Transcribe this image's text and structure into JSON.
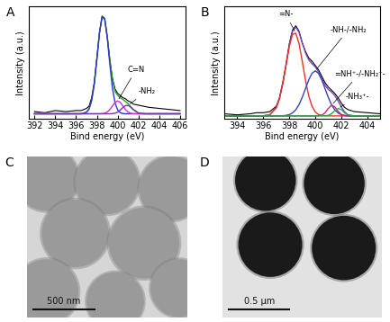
{
  "chart_data": [
    {
      "type": "line",
      "panel": "A",
      "xlabel": "Bind energy (eV)",
      "ylabel": "Intensity (a.u.)",
      "xlim": [
        391.5,
        406.5
      ],
      "xticks": [
        392,
        394,
        396,
        398,
        400,
        402,
        404,
        406
      ],
      "ylim": [
        0,
        1.05
      ],
      "tick_labels": "x",
      "x": [
        392,
        393,
        394,
        395,
        396,
        396.5,
        397,
        397.25,
        397.5,
        397.75,
        398,
        398.25,
        398.5,
        398.75,
        399,
        399.25,
        399.5,
        399.75,
        400,
        400.25,
        400.5,
        400.75,
        401,
        401.25,
        401.5,
        402,
        402.5,
        403,
        404,
        405,
        406
      ],
      "series": [
        {
          "color": "#000000",
          "values": [
            0.07,
            0.06,
            0.08,
            0.07,
            0.08,
            0.08,
            0.1,
            0.12,
            0.2,
            0.34,
            0.57,
            0.8,
            0.96,
            0.94,
            0.77,
            0.55,
            0.38,
            0.28,
            0.24,
            0.22,
            0.2,
            0.19,
            0.17,
            0.16,
            0.14,
            0.13,
            0.12,
            0.11,
            0.1,
            0.09,
            0.08
          ]
        },
        {
          "color": "#22aa33",
          "values": [
            0.05,
            0.05,
            0.05,
            0.05,
            0.05,
            0.05,
            0.064,
            0.095,
            0.174,
            0.326,
            0.556,
            0.804,
            0.953,
            0.938,
            0.774,
            0.549,
            0.364,
            0.257,
            0.222,
            0.2,
            0.183,
            0.165,
            0.144,
            0.117,
            0.09,
            0.057,
            0.05,
            0.05,
            0.05,
            0.05,
            0.05
          ]
        },
        {
          "color": "#3333cc",
          "values": [
            0.05,
            0.05,
            0.05,
            0.05,
            0.05,
            0.05,
            0.064,
            0.095,
            0.174,
            0.326,
            0.556,
            0.804,
            0.952,
            0.933,
            0.758,
            0.51,
            0.289,
            0.151,
            0.086,
            0.06,
            0.052,
            0.05,
            0.05,
            0.05,
            0.05,
            0.05,
            0.05,
            0.05,
            0.05,
            0.05,
            0.05
          ]
        },
        {
          "name": "C=N",
          "color": "#cc33cc",
          "values": [
            0.05,
            0.05,
            0.05,
            0.05,
            0.05,
            0.05,
            0.05,
            0.05,
            0.05,
            0.05,
            0.05,
            0.05,
            0.051,
            0.055,
            0.066,
            0.089,
            0.123,
            0.156,
            0.17,
            0.156,
            0.123,
            0.089,
            0.066,
            0.055,
            0.051,
            0.05,
            0.05,
            0.05,
            0.05,
            0.05,
            0.05
          ]
        },
        {
          "name": "-NH₂",
          "color": "#7733aa",
          "values": [
            0.05,
            0.05,
            0.05,
            0.05,
            0.05,
            0.05,
            0.05,
            0.05,
            0.05,
            0.05,
            0.05,
            0.05,
            0.05,
            0.05,
            0.05,
            0.05,
            0.052,
            0.056,
            0.066,
            0.084,
            0.108,
            0.126,
            0.128,
            0.112,
            0.089,
            0.057,
            0.05,
            0.05,
            0.05,
            0.05,
            0.05
          ]
        }
      ]
    },
    {
      "type": "line",
      "panel": "B",
      "xlabel": "Bind energy (eV)",
      "ylabel": "Intensity (a.u.)",
      "xlim": [
        393,
        405
      ],
      "xticks": [
        394,
        396,
        398,
        400,
        402,
        404
      ],
      "ylim": [
        0,
        1.05
      ],
      "tick_labels": "x",
      "x": [
        393,
        394,
        395,
        395.5,
        396,
        396.5,
        397,
        397.25,
        397.5,
        397.75,
        398,
        398.25,
        398.5,
        398.75,
        399,
        399.25,
        399.5,
        399.75,
        400,
        400.25,
        400.5,
        400.75,
        401,
        401.25,
        401.5,
        401.75,
        402,
        402.25,
        402.5,
        403,
        404,
        405
      ],
      "series": [
        {
          "color": "#000000",
          "values": [
            0.05,
            0.04,
            0.05,
            0.06,
            0.06,
            0.07,
            0.12,
            0.2,
            0.34,
            0.5,
            0.7,
            0.83,
            0.87,
            0.82,
            0.71,
            0.63,
            0.57,
            0.54,
            0.5,
            0.46,
            0.4,
            0.34,
            0.3,
            0.27,
            0.24,
            0.2,
            0.15,
            0.11,
            0.09,
            0.07,
            0.06,
            0.05
          ]
        },
        {
          "color": "#7744bb",
          "values": [
            0.03,
            0.03,
            0.03,
            0.03,
            0.031,
            0.041,
            0.106,
            0.193,
            0.331,
            0.508,
            0.688,
            0.818,
            0.858,
            0.81,
            0.712,
            0.617,
            0.552,
            0.517,
            0.487,
            0.441,
            0.377,
            0.316,
            0.277,
            0.254,
            0.22,
            0.171,
            0.116,
            0.069,
            0.041,
            0.03,
            0.03,
            0.03
          ]
        },
        {
          "name": "=N-",
          "color": "#ee3322",
          "values": [
            0.03,
            0.03,
            0.03,
            0.03,
            0.031,
            0.041,
            0.106,
            0.193,
            0.329,
            0.503,
            0.676,
            0.79,
            0.801,
            0.705,
            0.539,
            0.362,
            0.216,
            0.12,
            0.067,
            0.043,
            0.034,
            0.031,
            0.03,
            0.03,
            0.03,
            0.03,
            0.03,
            0.03,
            0.03,
            0.03,
            0.03,
            0.03
          ]
        },
        {
          "name": "-NH-/-NH₂",
          "color": "#3344bb",
          "values": [
            0.03,
            0.03,
            0.03,
            0.03,
            0.03,
            0.03,
            0.03,
            0.03,
            0.032,
            0.035,
            0.042,
            0.058,
            0.087,
            0.135,
            0.203,
            0.285,
            0.366,
            0.427,
            0.45,
            0.427,
            0.366,
            0.285,
            0.203,
            0.135,
            0.087,
            0.058,
            0.042,
            0.035,
            0.032,
            0.03,
            0.03,
            0.03
          ]
        },
        {
          "name": "=NH⁺-/-NH₂⁺-",
          "color": "#cc2288",
          "values": [
            0.03,
            0.03,
            0.03,
            0.03,
            0.03,
            0.03,
            0.03,
            0.03,
            0.03,
            0.03,
            0.03,
            0.03,
            0.03,
            0.03,
            0.03,
            0.03,
            0.03,
            0.03,
            0.03,
            0.031,
            0.037,
            0.059,
            0.099,
            0.129,
            0.115,
            0.074,
            0.044,
            0.033,
            0.03,
            0.03,
            0.03,
            0.03
          ]
        },
        {
          "name": "-NH₃⁺-",
          "color": "#22aa44",
          "values": [
            0.03,
            0.03,
            0.03,
            0.03,
            0.03,
            0.03,
            0.03,
            0.03,
            0.03,
            0.03,
            0.03,
            0.03,
            0.03,
            0.03,
            0.03,
            0.03,
            0.03,
            0.03,
            0.03,
            0.03,
            0.03,
            0.031,
            0.035,
            0.05,
            0.078,
            0.099,
            0.09,
            0.061,
            0.039,
            0.03,
            0.03,
            0.03
          ]
        }
      ]
    }
  ],
  "images": [
    {
      "panel": "C",
      "scale_bar": "500 nm"
    },
    {
      "panel": "D",
      "scale_bar": "0.5 μm"
    }
  ]
}
